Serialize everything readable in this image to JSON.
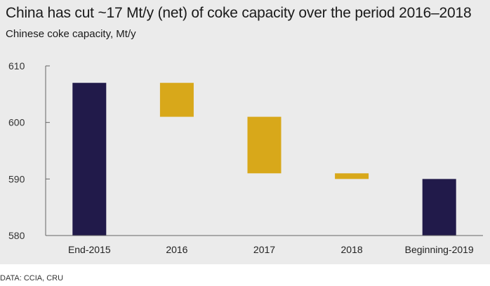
{
  "title": "China has cut ~17 Mt/y (net) of coke capacity over the period 2016–2018",
  "subtitle": "Chinese coke capacity, Mt/y",
  "source": "DATA: CCIA, CRU",
  "colors": {
    "total": "#211a4a",
    "change": "#d8a81a",
    "axis": "#666666",
    "grid": "#ffffff",
    "background": "#ebebeb"
  },
  "chart_data": {
    "type": "bar",
    "subtype": "waterfall",
    "title": "China has cut ~17 Mt/y (net) of coke capacity over the period 2016–2018",
    "subtitle": "Chinese coke capacity, Mt/y",
    "xlabel": "",
    "ylabel": "",
    "ylim": [
      580,
      610
    ],
    "yticks": [
      580,
      590,
      600,
      610
    ],
    "categories": [
      "End-2015",
      "2016",
      "2017",
      "2018",
      "Beginning-2019"
    ],
    "bars": [
      {
        "category": "End-2015",
        "kind": "total",
        "start": 580,
        "end": 607
      },
      {
        "category": "2016",
        "kind": "change",
        "start": 607,
        "end": 601
      },
      {
        "category": "2017",
        "kind": "change",
        "start": 601,
        "end": 591
      },
      {
        "category": "2018",
        "kind": "change",
        "start": 591,
        "end": 590
      },
      {
        "category": "Beginning-2019",
        "kind": "total",
        "start": 580,
        "end": 590
      }
    ],
    "grid": false,
    "legend": "none"
  }
}
